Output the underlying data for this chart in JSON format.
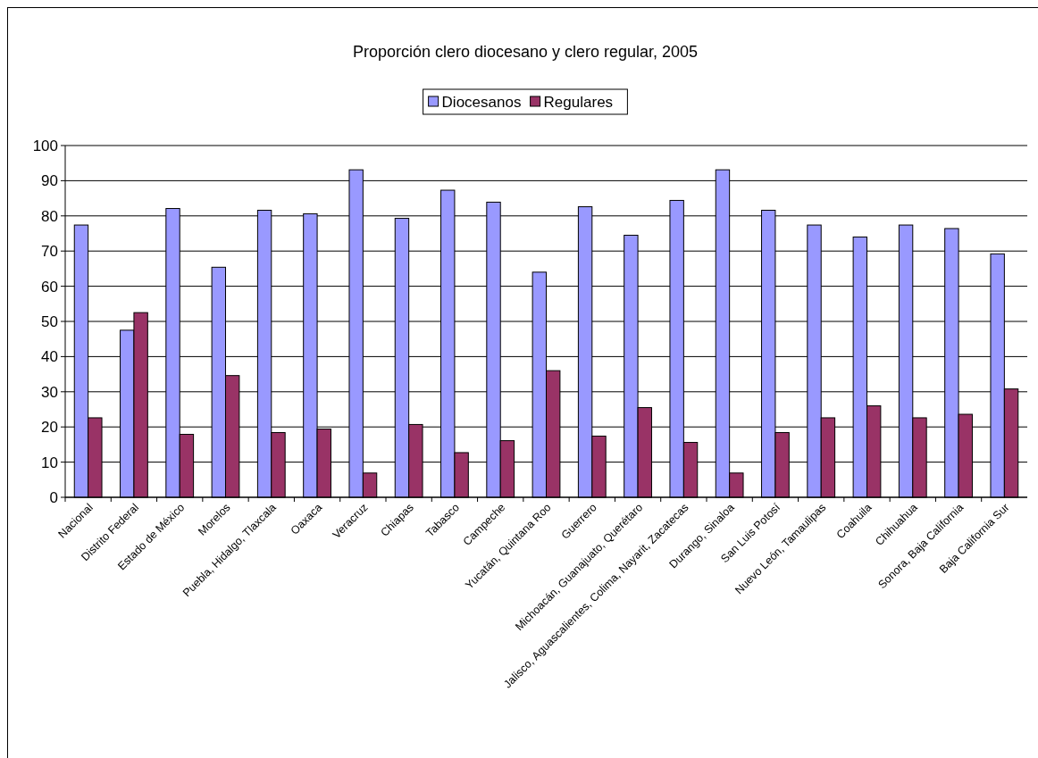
{
  "chart_data": {
    "type": "bar",
    "title": "Proporción clero diocesano y clero regular, 2005",
    "categories": [
      "Nacional",
      "Distrito Federal",
      "Estado de México",
      "Morelos",
      "Puebla, Hidalgo, Tlaxcala",
      "Oaxaca",
      "Veracruz",
      "Chiapas",
      "Tabasco",
      "Campeche",
      "Yucatán, Quintana Roo",
      "Guerrero",
      "Michoacán, Guanajuato, Querétaro",
      "Jalisco, Aguascalientes, Colima, Nayarit, Zacatecas",
      "Durango, Sinaloa",
      "San Luis Potosí",
      "Nuevo León, Tamaulipas",
      "Coahuila",
      "Chihuahua",
      "Sonora, Baja California",
      "Baja California Sur"
    ],
    "series": [
      {
        "name": "Diocesanos",
        "color": "#9999ff",
        "values": [
          77.4,
          47.5,
          82.1,
          65.4,
          81.6,
          80.6,
          93.1,
          79.3,
          87.3,
          83.9,
          64.0,
          82.6,
          74.5,
          84.4,
          93.1,
          81.6,
          77.4,
          74.0,
          77.4,
          76.4,
          69.2
        ]
      },
      {
        "name": "Regulares",
        "color": "#993366",
        "values": [
          22.6,
          52.5,
          17.9,
          34.6,
          18.4,
          19.4,
          6.9,
          20.7,
          12.7,
          16.1,
          36.0,
          17.4,
          25.5,
          15.6,
          6.9,
          18.4,
          22.6,
          26.0,
          22.6,
          23.6,
          30.8
        ]
      }
    ],
    "ylim": [
      0,
      100
    ],
    "yticks": [
      0,
      10,
      20,
      30,
      40,
      50,
      60,
      70,
      80,
      90,
      100
    ],
    "grid": "y",
    "legend": "top"
  }
}
